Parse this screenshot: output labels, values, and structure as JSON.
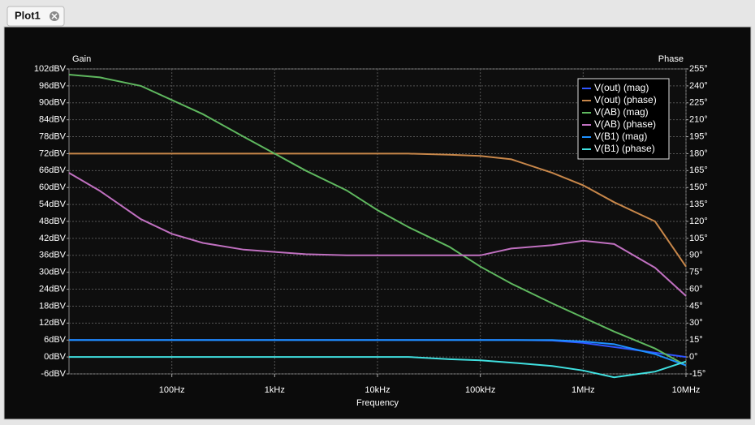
{
  "window": {
    "tab": "Plot1"
  },
  "chart_data": {
    "type": "line",
    "ylabel": "Gain",
    "y2label": "Phase",
    "xlabel": "Frequency",
    "log_x": true,
    "grid": true,
    "legend": "top-right",
    "x": [
      10,
      20,
      50,
      100,
      200,
      500,
      1000,
      2000,
      5000,
      10000,
      20000,
      50000,
      100000,
      200000,
      500000,
      1000000,
      2000000,
      5000000,
      10000000
    ],
    "xlim": [
      10,
      10000000
    ],
    "xticks": [
      {
        "value": 100,
        "label": "100Hz"
      },
      {
        "value": 1000,
        "label": "1kHz"
      },
      {
        "value": 10000,
        "label": "10kHz"
      },
      {
        "value": 100000,
        "label": "100kHz"
      },
      {
        "value": 1000000,
        "label": "1MHz"
      },
      {
        "value": 10000000,
        "label": "10MHz"
      }
    ],
    "ylim": [
      -6,
      102
    ],
    "yticks": [
      {
        "value": 102,
        "label": "102dBV"
      },
      {
        "value": 96,
        "label": "96dBV"
      },
      {
        "value": 90,
        "label": "90dBV"
      },
      {
        "value": 84,
        "label": "84dBV"
      },
      {
        "value": 78,
        "label": "78dBV"
      },
      {
        "value": 72,
        "label": "72dBV"
      },
      {
        "value": 66,
        "label": "66dBV"
      },
      {
        "value": 60,
        "label": "60dBV"
      },
      {
        "value": 54,
        "label": "54dBV"
      },
      {
        "value": 48,
        "label": "48dBV"
      },
      {
        "value": 42,
        "label": "42dBV"
      },
      {
        "value": 36,
        "label": "36dBV"
      },
      {
        "value": 30,
        "label": "30dBV"
      },
      {
        "value": 24,
        "label": "24dBV"
      },
      {
        "value": 18,
        "label": "18dBV"
      },
      {
        "value": 12,
        "label": "12dBV"
      },
      {
        "value": 6,
        "label": "6dBV"
      },
      {
        "value": 0,
        "label": "0dBV"
      },
      {
        "value": -6,
        "label": "-6dBV"
      }
    ],
    "y2lim": [
      -15,
      255
    ],
    "y2ticks": [
      {
        "value": 255,
        "label": "255°"
      },
      {
        "value": 240,
        "label": "240°"
      },
      {
        "value": 225,
        "label": "225°"
      },
      {
        "value": 210,
        "label": "210°"
      },
      {
        "value": 195,
        "label": "195°"
      },
      {
        "value": 180,
        "label": "180°"
      },
      {
        "value": 165,
        "label": "165°"
      },
      {
        "value": 150,
        "label": "150°"
      },
      {
        "value": 135,
        "label": "135°"
      },
      {
        "value": 120,
        "label": "120°"
      },
      {
        "value": 105,
        "label": "105°"
      },
      {
        "value": 90,
        "label": "90°"
      },
      {
        "value": 75,
        "label": "75°"
      },
      {
        "value": 60,
        "label": "60°"
      },
      {
        "value": 45,
        "label": "45°"
      },
      {
        "value": 30,
        "label": "30°"
      },
      {
        "value": 15,
        "label": "15°"
      },
      {
        "value": 0,
        "label": "0°"
      },
      {
        "value": -15,
        "label": "-15°"
      }
    ],
    "series": [
      {
        "name": "V(out) (mag)",
        "color": "#2f55ff",
        "values": [
          6,
          6,
          6,
          6,
          6,
          6,
          6,
          6,
          6,
          6,
          6,
          6,
          6,
          6,
          5.8,
          5,
          3.5,
          1.5,
          0
        ]
      },
      {
        "name": "V(out) (phase)",
        "color": "#c8874a",
        "axis": "y2",
        "values": [
          180,
          180,
          180,
          180,
          180,
          180,
          180,
          180,
          180,
          180,
          180,
          179,
          178,
          175,
          163,
          152,
          137,
          120,
          80
        ]
      },
      {
        "name": "V(AB) (mag)",
        "color": "#5fb85f",
        "values": [
          100,
          99,
          96,
          91,
          86,
          78,
          72,
          66,
          59,
          52,
          46,
          39,
          32,
          26,
          19,
          14,
          9,
          3,
          -3
        ]
      },
      {
        "name": "V(AB) (phase)",
        "color": "#c070c0",
        "axis": "y2",
        "values": [
          163,
          147,
          122,
          109,
          101,
          95,
          93,
          91,
          90,
          90,
          90,
          90,
          90,
          96,
          99,
          103,
          100,
          79,
          54
        ]
      },
      {
        "name": "V(B1) (mag)",
        "color": "#1e90ff",
        "values": [
          6,
          6,
          6,
          6,
          6,
          6,
          6,
          6,
          6,
          6,
          6,
          6,
          6,
          6,
          6,
          5.5,
          4.5,
          1,
          -3
        ]
      },
      {
        "name": "V(B1) (phase)",
        "color": "#40e0e0",
        "axis": "y2",
        "values": [
          0,
          0,
          0,
          0,
          0,
          0,
          0,
          0,
          0,
          0,
          0,
          -2,
          -3,
          -5,
          -8,
          -12,
          -18,
          -13,
          -4
        ]
      }
    ]
  }
}
